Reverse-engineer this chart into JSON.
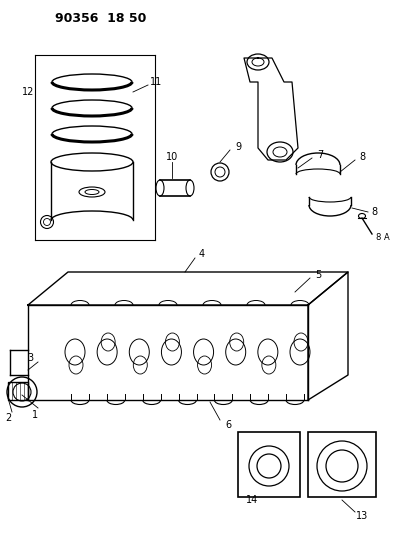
{
  "title": "90356  18 50",
  "bg_color": "#ffffff",
  "line_color": "#000000",
  "fig_width": 3.96,
  "fig_height": 5.33,
  "dpi": 100
}
